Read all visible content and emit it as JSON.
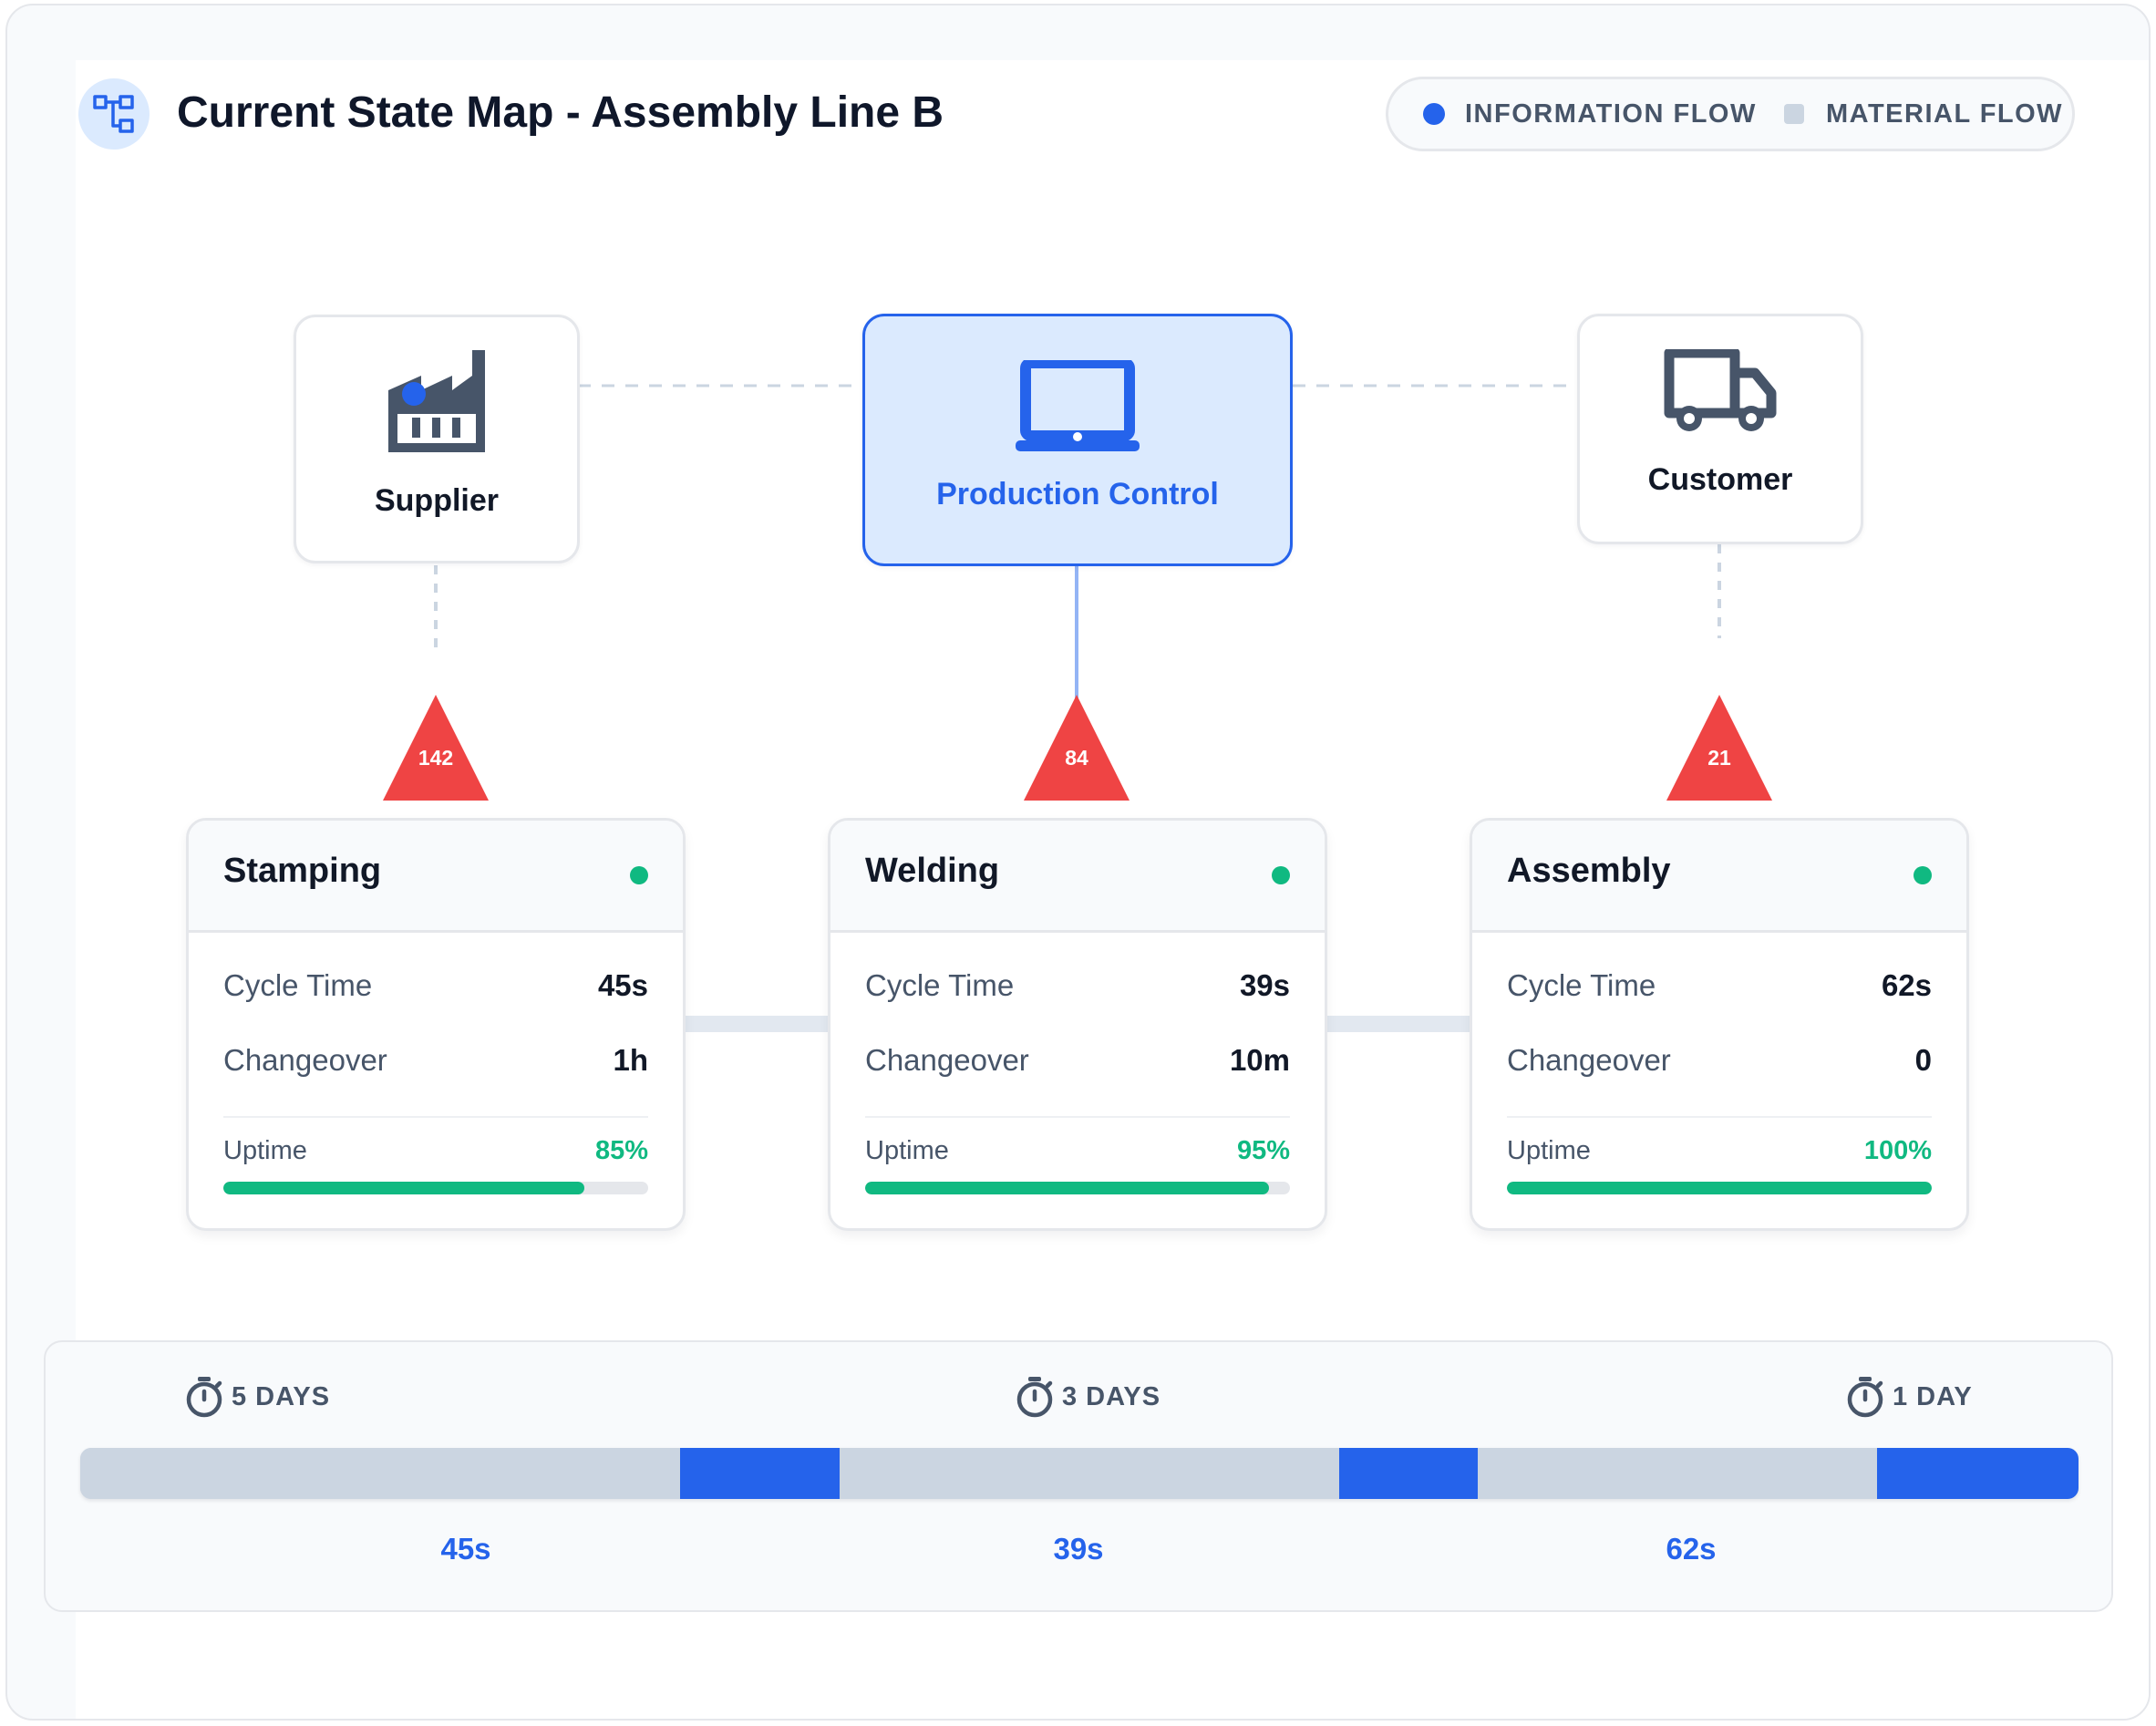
{
  "header": {
    "title": "Current State Map - Assembly Line B",
    "logo_icon": "flowchart-icon"
  },
  "legend": {
    "information_flow": {
      "label": "INFORMATION FLOW",
      "color": "#2563eb"
    },
    "material_flow": {
      "label": "MATERIAL FLOW",
      "color": "#cbd5e1"
    }
  },
  "entities": {
    "supplier": {
      "label": "Supplier",
      "icon": "factory-icon"
    },
    "production_control": {
      "label": "Production Control",
      "icon": "laptop-icon"
    },
    "customer": {
      "label": "Customer",
      "icon": "truck-icon"
    }
  },
  "inventory": [
    {
      "value": "142",
      "color": "#ef4444"
    },
    {
      "value": "84",
      "color": "#ef4444"
    },
    {
      "value": "21",
      "color": "#ef4444"
    }
  ],
  "processes": [
    {
      "name": "Stamping",
      "cycle_label": "Cycle Time",
      "cycle_value": "45s",
      "changeover_label": "Changeover",
      "changeover_value": "1h",
      "uptime_label": "Uptime",
      "uptime_value": "85%",
      "uptime_fraction": 0.85,
      "status": "running"
    },
    {
      "name": "Welding",
      "cycle_label": "Cycle Time",
      "cycle_value": "39s",
      "changeover_label": "Changeover",
      "changeover_value": "10m",
      "uptime_label": "Uptime",
      "uptime_value": "95%",
      "uptime_fraction": 0.95,
      "status": "running"
    },
    {
      "name": "Assembly",
      "cycle_label": "Cycle Time",
      "cycle_value": "62s",
      "changeover_label": "Changeover",
      "changeover_value": "0",
      "uptime_label": "Uptime",
      "uptime_value": "100%",
      "uptime_fraction": 1.0,
      "status": "running"
    }
  ],
  "timeline": {
    "stopwatch_icon": "stopwatch-icon",
    "wait_times": [
      "5 DAYS",
      "3 DAYS",
      "1 DAY"
    ],
    "process_times": [
      "45s",
      "39s",
      "62s"
    ],
    "colors": {
      "wait": "#cbd5e1",
      "process": "#2563eb"
    }
  },
  "colors": {
    "accent": "#2563eb",
    "status_ok": "#10b981",
    "inventory": "#ef4444"
  }
}
